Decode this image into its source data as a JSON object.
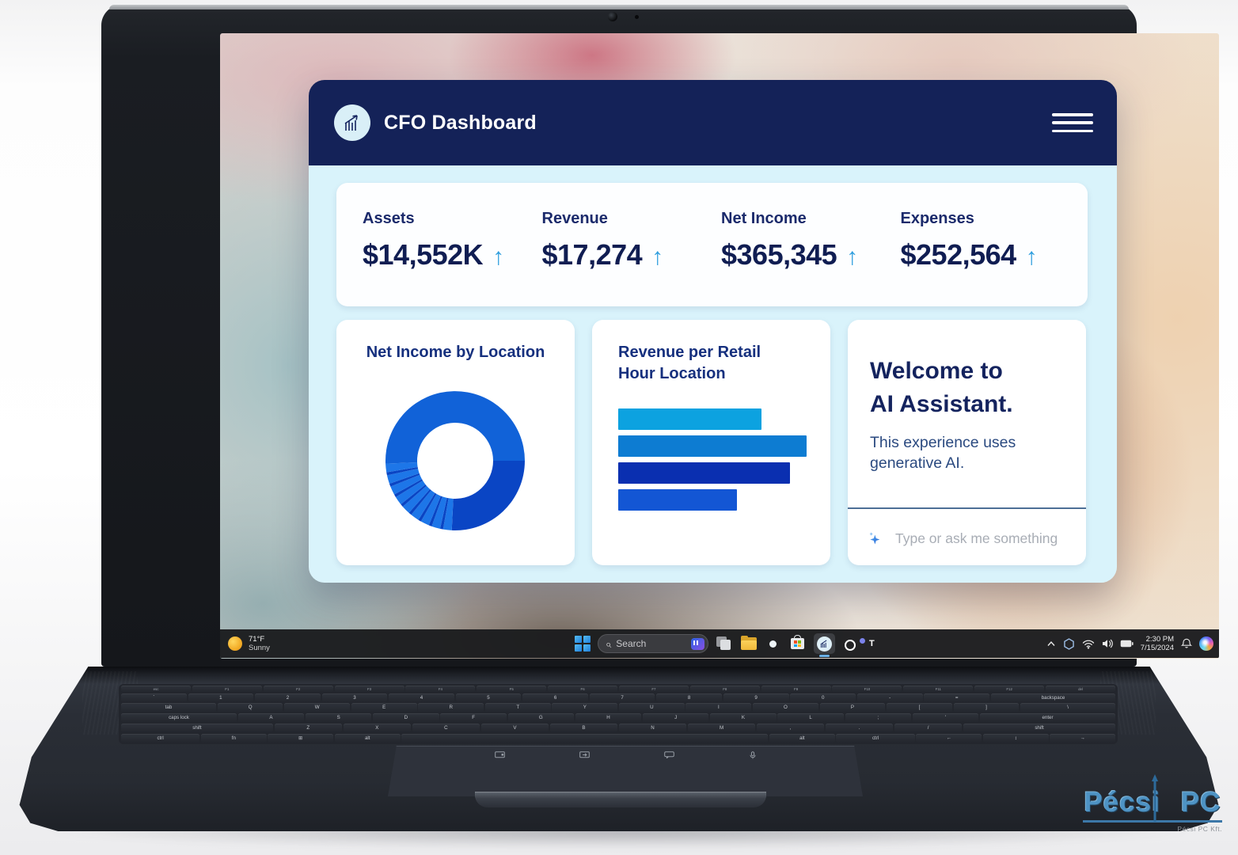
{
  "app": {
    "header": {
      "title": "CFO Dashboard"
    },
    "trend_up_glyph": "↑",
    "kpis": [
      {
        "label": "Assets",
        "value": "$14,552K",
        "trend": "up"
      },
      {
        "label": "Revenue",
        "value": "$17,274",
        "trend": "up"
      },
      {
        "label": "Net Income",
        "value": "$365,345",
        "trend": "up"
      },
      {
        "label": "Expenses",
        "value": "$252,564",
        "trend": "up"
      }
    ],
    "cards": {
      "net_income_title": "Net Income by Location",
      "revenue_title_line1": "Revenue per Retail",
      "revenue_title_line2": "Hour Location",
      "assistant_title_line1": "Welcome to",
      "assistant_title_line2": "AI Assistant.",
      "assistant_body": "This experience uses generative AI.",
      "assistant_placeholder": "Type or ask me something"
    }
  },
  "chart_data": [
    {
      "type": "pie",
      "donut": true,
      "title": "Net Income by Location",
      "legend": false,
      "start_angle_deg": 90,
      "segments": [
        {
          "value": 25.8,
          "color": "#0a45c4"
        },
        {
          "value": 2.0,
          "color": "#1d76e8"
        },
        {
          "value": 0.7,
          "color": "#0a45c4"
        },
        {
          "value": 2.0,
          "color": "#1d76e8"
        },
        {
          "value": 0.7,
          "color": "#0a45c4"
        },
        {
          "value": 2.0,
          "color": "#1d76e8"
        },
        {
          "value": 0.7,
          "color": "#0a45c4"
        },
        {
          "value": 2.0,
          "color": "#1d76e8"
        },
        {
          "value": 0.7,
          "color": "#0a45c4"
        },
        {
          "value": 2.0,
          "color": "#1d76e8"
        },
        {
          "value": 0.7,
          "color": "#0a45c4"
        },
        {
          "value": 2.0,
          "color": "#1d76e8"
        },
        {
          "value": 0.7,
          "color": "#0a45c4"
        },
        {
          "value": 2.0,
          "color": "#1d76e8"
        },
        {
          "value": 0.7,
          "color": "#0a45c4"
        },
        {
          "value": 2.0,
          "color": "#1d76e8"
        },
        {
          "value": 0.7,
          "color": "#0a45c4"
        },
        {
          "value": 2.0,
          "color": "#1d76e8"
        },
        {
          "value": 50.7,
          "color": "#1162d8"
        }
      ]
    },
    {
      "type": "bar",
      "orientation": "horizontal",
      "title": "Revenue per Retail Hour Location",
      "values": [
        76,
        100,
        91,
        63
      ],
      "max": 100,
      "colors": [
        "#0ca2e0",
        "#0d7cd2",
        "#0a2fb0",
        "#1356d4"
      ],
      "axis_labels": false
    }
  ],
  "taskbar": {
    "weather": {
      "temp": "71°F",
      "condition": "Sunny"
    },
    "search": {
      "placeholder": "Search"
    },
    "active_app": "cfo-dashboard",
    "tray": {
      "time": "2:30 PM",
      "date": "7/15/2024"
    }
  },
  "keyboard": {
    "rows": [
      [
        "esc",
        "F1",
        "F2",
        "F3",
        "F4",
        "F5",
        "F6",
        "F7",
        "F8",
        "F9",
        "F10",
        "F11",
        "F12",
        "del"
      ],
      [
        "`",
        "1",
        "2",
        "3",
        "4",
        "5",
        "6",
        "7",
        "8",
        "9",
        "0",
        "-",
        "=",
        "backspace|1.9"
      ],
      [
        "tab|1.45",
        "Q",
        "W",
        "E",
        "R",
        "T",
        "Y",
        "U",
        "I",
        "O",
        "P",
        "[",
        "]",
        "\\|1.45"
      ],
      [
        "caps lock|1.75",
        "A",
        "S",
        "D",
        "F",
        "G",
        "H",
        "J",
        "K",
        "L",
        ";",
        "'",
        "enter|2.05"
      ],
      [
        "shift|2.25",
        "Z",
        "X",
        "C",
        "V",
        "B",
        "N",
        "M",
        ",",
        ".",
        "/",
        "shift|2.25"
      ],
      [
        "ctrl|1.2",
        "fn",
        "⊞",
        "alt",
        "|5.6",
        "alt",
        "ctrl|1.2",
        "←",
        "↕",
        "→"
      ]
    ]
  },
  "watermark": {
    "word1": "Pécsi",
    "word2": "PC",
    "subtitle": "Pécsi PC Kft."
  }
}
